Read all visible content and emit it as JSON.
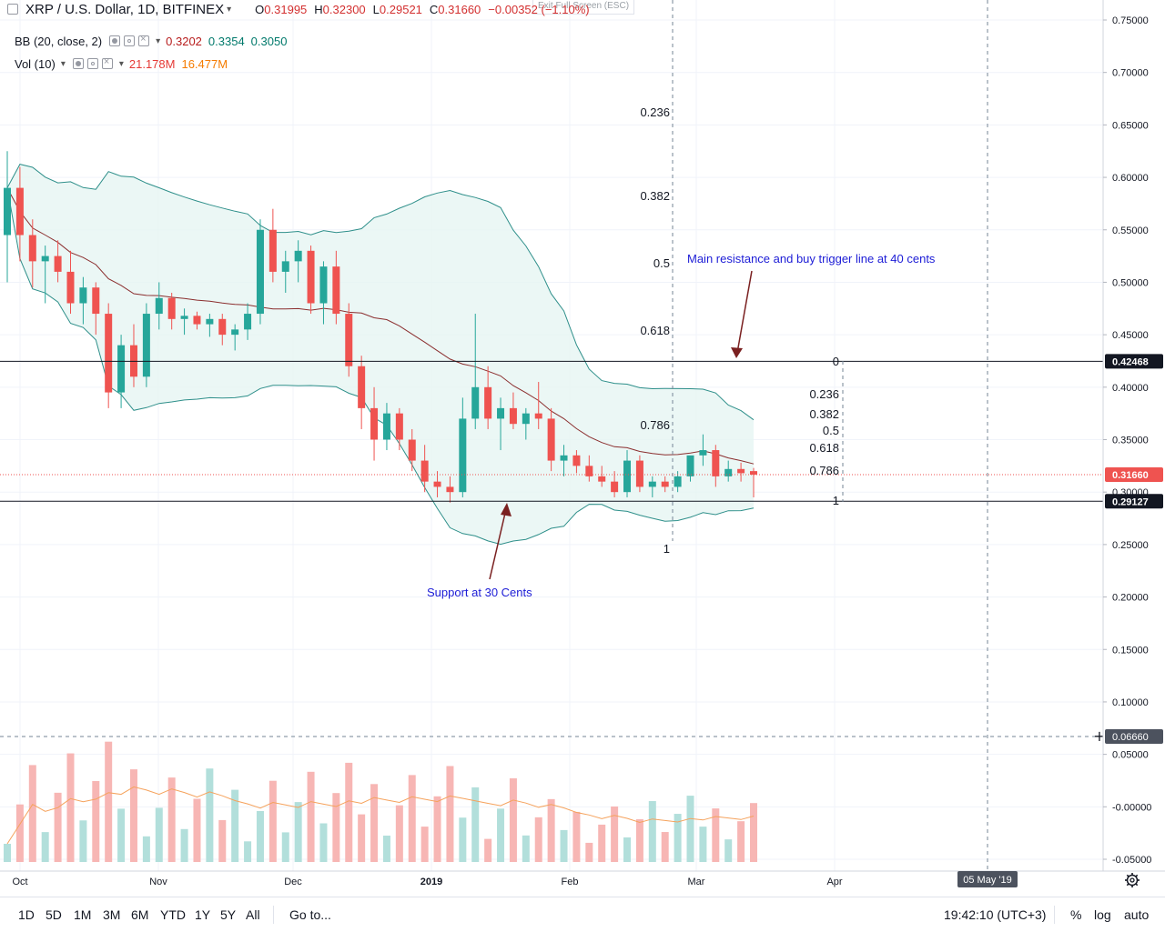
{
  "legend": {
    "symbol": "XRP / U.S. Dollar, 1D, BITFINEX",
    "open_label": "O",
    "open": "0.31995",
    "high_label": "H",
    "high": "0.32300",
    "low_label": "L",
    "low": "0.29521",
    "close_label": "C",
    "close": "0.31660",
    "change": "−0.00352 (−1.10%)",
    "bb_label": "BB (20, close, 2)",
    "bb_basis": "0.3202",
    "bb_upper": "0.3354",
    "bb_lower": "0.3050",
    "vol_label": "Vol (10)",
    "vol_value": "21.178M",
    "vol_ma": "16.477M"
  },
  "exit_fullscreen": "Exit Full Screen (ESC)",
  "annotations": {
    "resistance_text": "Main resistance and buy trigger line at 40 cents",
    "support_text": "Support at 30 Cents"
  },
  "bottom_bar": {
    "ranges": [
      "1D",
      "5D",
      "1M",
      "3M",
      "6M",
      "YTD",
      "1Y",
      "5Y",
      "All"
    ],
    "goto": "Go to...",
    "clock": "19:42:10 (UTC+3)",
    "percent": "%",
    "log": "log",
    "auto": "auto"
  },
  "colors": {
    "up": "#26a69a",
    "down": "#ef5350",
    "bb_band": "#2e8f8a",
    "bb_fill": "#e6f5f3",
    "bb_basis": "#8b2e2e",
    "annotation_text": "#1c1cd6",
    "arrow": "#7a2020",
    "vol_up": "#b2dfdb",
    "vol_down": "#f7b6b4",
    "vol_ma": "#f5a25c",
    "last_price_bg": "#ef5350",
    "level_bg": "#131722"
  },
  "chart_data": {
    "type": "candlestick",
    "x_axis": {
      "labels": [
        "Oct",
        "Nov",
        "Dec",
        "2019",
        "Feb",
        "Mar",
        "Apr",
        "05 May '19"
      ]
    },
    "y_axis": {
      "ylim": [
        -0.06,
        0.76
      ],
      "ticks": [
        "0.75000",
        "0.70000",
        "0.65000",
        "0.60000",
        "0.55000",
        "0.50000",
        "0.45000",
        "0.40000",
        "0.35000",
        "0.30000",
        "0.25000",
        "0.20000",
        "0.15000",
        "0.10000",
        "0.05000",
        "-0.00000",
        "-0.05000"
      ]
    },
    "price_labels": {
      "resistance": "0.42468",
      "last": "0.31660",
      "support": "0.29127",
      "crosshair": "0.06660"
    },
    "horizontal_levels": [
      0.42468,
      0.29127
    ],
    "fib_retracement_1": {
      "levels": [
        "0.236",
        "0.382",
        "0.5",
        "0.618",
        "0.786",
        "1"
      ],
      "values": [
        0.664,
        0.584,
        0.519,
        0.454,
        0.357,
        0.255
      ]
    },
    "fib_retracement_2": {
      "levels": [
        "0",
        "0.236",
        "0.382",
        "0.5",
        "0.618",
        "0.786",
        "1"
      ],
      "values": [
        0.42468,
        0.393,
        0.373,
        0.357,
        0.342,
        0.319,
        0.29127
      ]
    },
    "candles_approx": [
      [
        0.545,
        0.625,
        0.5,
        0.59
      ],
      [
        0.59,
        0.61,
        0.52,
        0.545
      ],
      [
        0.545,
        0.56,
        0.495,
        0.52
      ],
      [
        0.52,
        0.535,
        0.48,
        0.525
      ],
      [
        0.525,
        0.54,
        0.5,
        0.51
      ],
      [
        0.51,
        0.53,
        0.47,
        0.48
      ],
      [
        0.48,
        0.505,
        0.46,
        0.495
      ],
      [
        0.495,
        0.5,
        0.45,
        0.47
      ],
      [
        0.47,
        0.48,
        0.38,
        0.395
      ],
      [
        0.395,
        0.45,
        0.38,
        0.44
      ],
      [
        0.44,
        0.46,
        0.4,
        0.41
      ],
      [
        0.41,
        0.48,
        0.4,
        0.47
      ],
      [
        0.47,
        0.5,
        0.455,
        0.485
      ],
      [
        0.485,
        0.49,
        0.455,
        0.465
      ],
      [
        0.465,
        0.475,
        0.45,
        0.468
      ],
      [
        0.468,
        0.472,
        0.455,
        0.46
      ],
      [
        0.46,
        0.47,
        0.448,
        0.465
      ],
      [
        0.465,
        0.47,
        0.44,
        0.45
      ],
      [
        0.45,
        0.46,
        0.435,
        0.455
      ],
      [
        0.455,
        0.48,
        0.445,
        0.47
      ],
      [
        0.47,
        0.56,
        0.46,
        0.55
      ],
      [
        0.55,
        0.57,
        0.5,
        0.51
      ],
      [
        0.51,
        0.53,
        0.49,
        0.52
      ],
      [
        0.52,
        0.54,
        0.5,
        0.53
      ],
      [
        0.53,
        0.535,
        0.47,
        0.48
      ],
      [
        0.48,
        0.52,
        0.46,
        0.515
      ],
      [
        0.515,
        0.53,
        0.46,
        0.47
      ],
      [
        0.47,
        0.48,
        0.41,
        0.42
      ],
      [
        0.42,
        0.43,
        0.36,
        0.38
      ],
      [
        0.38,
        0.4,
        0.33,
        0.35
      ],
      [
        0.35,
        0.385,
        0.34,
        0.375
      ],
      [
        0.375,
        0.38,
        0.34,
        0.35
      ],
      [
        0.35,
        0.36,
        0.32,
        0.33
      ],
      [
        0.33,
        0.345,
        0.3,
        0.31
      ],
      [
        0.31,
        0.32,
        0.295,
        0.305
      ],
      [
        0.305,
        0.315,
        0.29,
        0.3
      ],
      [
        0.3,
        0.39,
        0.295,
        0.37
      ],
      [
        0.37,
        0.47,
        0.36,
        0.4
      ],
      [
        0.4,
        0.42,
        0.36,
        0.37
      ],
      [
        0.37,
        0.39,
        0.34,
        0.38
      ],
      [
        0.38,
        0.395,
        0.36,
        0.365
      ],
      [
        0.365,
        0.38,
        0.35,
        0.375
      ],
      [
        0.375,
        0.405,
        0.36,
        0.37
      ],
      [
        0.37,
        0.38,
        0.32,
        0.33
      ],
      [
        0.33,
        0.345,
        0.315,
        0.335
      ],
      [
        0.335,
        0.34,
        0.318,
        0.325
      ],
      [
        0.325,
        0.335,
        0.31,
        0.315
      ],
      [
        0.315,
        0.325,
        0.305,
        0.31
      ],
      [
        0.31,
        0.32,
        0.295,
        0.3
      ],
      [
        0.3,
        0.34,
        0.295,
        0.33
      ],
      [
        0.33,
        0.335,
        0.3,
        0.305
      ],
      [
        0.305,
        0.315,
        0.295,
        0.31
      ],
      [
        0.31,
        0.315,
        0.3,
        0.305
      ],
      [
        0.305,
        0.32,
        0.3,
        0.315
      ],
      [
        0.315,
        0.33,
        0.31,
        0.335
      ],
      [
        0.335,
        0.355,
        0.325,
        0.34
      ],
      [
        0.34,
        0.345,
        0.305,
        0.315
      ],
      [
        0.315,
        0.33,
        0.31,
        0.322
      ],
      [
        0.322,
        0.328,
        0.31,
        0.318
      ],
      [
        0.32,
        0.323,
        0.295,
        0.3166
      ]
    ]
  }
}
